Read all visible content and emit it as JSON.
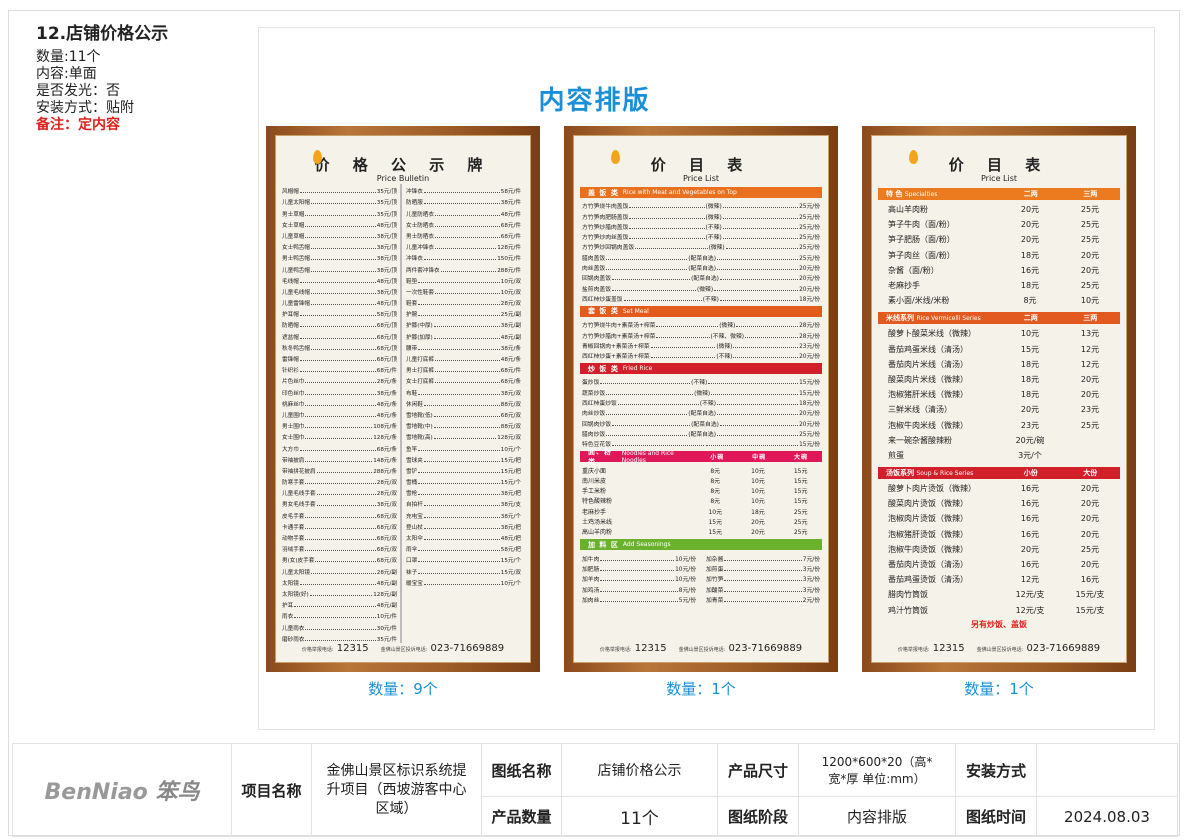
{
  "info": {
    "title": "12.店铺价格公示",
    "qty": "数量:11个",
    "content": "内容:单面",
    "glow": "是否发光：否",
    "install": "安装方式：贴附",
    "note": "备注：定内容"
  },
  "main_title": "内容排版",
  "colors": {
    "accent": "#1a8fd8",
    "note": "#e0201a",
    "rice_top": "#e8701e",
    "set_meal": "#e25a1c",
    "fried_rice": "#d21f2a",
    "noodles": "#e0185a",
    "seasonings": "#6ab22e",
    "specialties": "#ec7a1f",
    "vermicelli": "#e35a20",
    "soup": "#d2202a"
  },
  "footer_phones": {
    "report_label": "价格举报电话:",
    "report": "12315",
    "complaint_label": "金佛山景区投诉电话:",
    "complaint": "023-71669889"
  },
  "board1": {
    "title": "价 格 公 示 牌",
    "subtitle": "Price Bulletin",
    "caption": "数量：9个",
    "left": [
      [
        "风帽帽",
        "35元/顶"
      ],
      [
        "儿童太阳帽",
        "35元/顶"
      ],
      [
        "男士草帽",
        "35元/顶"
      ],
      [
        "女士草帽",
        "48元/顶"
      ],
      [
        "儿童草帽",
        "38元/顶"
      ],
      [
        "女士鸭舌帽",
        "38元/顶"
      ],
      [
        "男士鸭舌帽",
        "38元/顶"
      ],
      [
        "儿童鸭舌帽",
        "38元/顶"
      ],
      [
        "毛线帽",
        "48元/顶"
      ],
      [
        "儿童毛线帽",
        "38元/顶"
      ],
      [
        "儿童雷锋帽",
        "48元/顶"
      ],
      [
        "护耳帽",
        "58元/顶"
      ],
      [
        "防晒帽",
        "68元/顶"
      ],
      [
        "遮盆帽",
        "68元/顶"
      ],
      [
        "秋冬鸭舌帽",
        "68元/顶"
      ],
      [
        "雷锋帽",
        "68元/顶"
      ],
      [
        "针织衫",
        "68元/件"
      ],
      [
        "片色丝巾",
        "28元/条"
      ],
      [
        "印色丝巾",
        "38元/条"
      ],
      [
        "桃麻丝巾",
        "48元/条"
      ],
      [
        "儿童围巾",
        "48元/条"
      ],
      [
        "男士围巾",
        "108元/条"
      ],
      [
        "女士围巾",
        "128元/条"
      ],
      [
        "大方巾",
        "68元/条"
      ],
      [
        "带袖披肩",
        "148元/条"
      ],
      [
        "带袖拼花披肩",
        "288元/条"
      ],
      [
        "防寒手套",
        "28元/双"
      ],
      [
        "儿童毛线手套",
        "28元/双"
      ],
      [
        "男女毛线手套",
        "38元/双"
      ],
      [
        "皮毛手套",
        "68元/双"
      ],
      [
        "卡通手套",
        "68元/双"
      ],
      [
        "动物手套",
        "68元/双"
      ],
      [
        "羽绒手套",
        "68元/双"
      ],
      [
        "男(女)皮手套",
        "68元/双"
      ],
      [
        "儿童太阳镜",
        "28元/副"
      ],
      [
        "太阳镜",
        "48元/副"
      ],
      [
        "太阳镜(好)",
        "128元/副"
      ],
      [
        "护耳",
        "48元/副"
      ],
      [
        "雨衣",
        "10元/件"
      ],
      [
        "儿童雨衣",
        "30元/件"
      ],
      [
        "磨砂雨衣",
        "35元/件"
      ]
    ],
    "right": [
      [
        "冲锋衣",
        "58元/件"
      ],
      [
        "防晒服",
        "38元/件"
      ],
      [
        "儿童防晒衣",
        "48元/件"
      ],
      [
        "女士防晒衣",
        "68元/件"
      ],
      [
        "男士防晒衣",
        "68元/件"
      ],
      [
        "儿童冲锋衣",
        "128元/件"
      ],
      [
        "冲锋衣",
        "150元/件"
      ],
      [
        "两件套冲锋衣",
        "288元/件"
      ],
      [
        "鞋垫",
        "10元/双"
      ],
      [
        "一次性鞋套",
        "10元/双"
      ],
      [
        "鞋套",
        "28元/双"
      ],
      [
        "护腕",
        "25元/副"
      ],
      [
        "护膝(中厚)",
        "38元/副"
      ],
      [
        "护膝(加厚)",
        "48元/副"
      ],
      [
        "腰带",
        "38元/条"
      ],
      [
        "儿童打底裤",
        "48元/条"
      ],
      [
        "男士打底裤",
        "68元/件"
      ],
      [
        "女士打底裤",
        "68元/条"
      ],
      [
        "布鞋",
        "38元/双"
      ],
      [
        "休闲鞋",
        "88元/双"
      ],
      [
        "雪地靴(低)",
        "68元/双"
      ],
      [
        "雪地靴(中)",
        "88元/双"
      ],
      [
        "雪地靴(高)",
        "128元/双"
      ],
      [
        "鱼竿",
        "10元/个"
      ],
      [
        "雪球夹",
        "15元/把"
      ],
      [
        "雪铲",
        "15元/把"
      ],
      [
        "雪桶",
        "15元/个"
      ],
      [
        "雪枪",
        "38元/把"
      ],
      [
        "自拍杆",
        "38元/支"
      ],
      [
        "充电宝",
        "38元/个"
      ],
      [
        "登山杖",
        "38元/把"
      ],
      [
        "太阳伞",
        "48元/把"
      ],
      [
        "雨伞",
        "58元/把"
      ],
      [
        "口罩",
        "15元/个"
      ],
      [
        "袜子",
        "15元/双"
      ],
      [
        "暖宝宝",
        "10元/个"
      ]
    ]
  },
  "board2": {
    "title": "价 目 表",
    "subtitle": "Price List",
    "caption": "数量：1个",
    "rice_top": {
      "title": "盖 饭 类",
      "en": "Rice with Meat and Vegetables on Top",
      "items": [
        [
          "方竹笋烧牛肉盖饭",
          "(微辣)",
          "25元/份"
        ],
        [
          "方竹笋肉肥肠盖饭",
          "(微辣)",
          "25元/份"
        ],
        [
          "方竹笋炒腊肉盖饭",
          "(不辣)",
          "25元/份"
        ],
        [
          "方竹笋炒肉丝盖饭",
          "(不辣)",
          "25元/份"
        ],
        [
          "方竹笋炒回锅肉盖饭",
          "(微辣)",
          "25元/份"
        ],
        [
          "腊肉盖饭",
          "(配菜自选)",
          "25元/份"
        ],
        [
          "肉丝盖饭",
          "(配菜自选)",
          "20元/份"
        ],
        [
          "回锅肉盖饭",
          "(配菜自选)",
          "20元/份"
        ],
        [
          "盐煎肉盖饭",
          "(微辣)",
          "20元/份"
        ],
        [
          "西红柿炒蛋盖饭",
          "(不辣)",
          "18元/份"
        ]
      ]
    },
    "set_meal": {
      "title": "套 饭 类",
      "en": "Set Meal",
      "items": [
        [
          "方竹笋烧牛肉+素菜汤+榨菜",
          "(微辣)",
          "28元/份"
        ],
        [
          "方竹笋炒腊肉+素菜汤+榨菜",
          "(不辣、微辣)",
          "28元/份"
        ],
        [
          "青椒回锅肉+素菜汤+榨菜",
          "(微辣)",
          "23元/份"
        ],
        [
          "西红柿炒蛋+素菜汤+榨菜",
          "(不辣)",
          "20元/份"
        ]
      ]
    },
    "fried_rice": {
      "title": "炒 饭 类",
      "en": "Fried Rice",
      "items": [
        [
          "蛋炒饭",
          "(不辣)",
          "15元/份"
        ],
        [
          "蔬菜炒饭",
          "(微辣)",
          "15元/份"
        ],
        [
          "西红柿蛋炒饭",
          "(不辣)",
          "18元/份"
        ],
        [
          "肉丝炒饭",
          "(配菜自选)",
          "20元/份"
        ],
        [
          "回锅肉炒饭",
          "(配菜自选)",
          "20元/份"
        ],
        [
          "腊肉炒饭",
          "(配菜自选)",
          "25元/份"
        ],
        [
          "特色豆花饭",
          "",
          "15元/份"
        ]
      ]
    },
    "noodles": {
      "title": "面、粉类",
      "en": "Noodles and Rice Noodles",
      "sizes": [
        "小碗",
        "中碗",
        "大碗"
      ],
      "items": [
        [
          "重庆小面",
          "8元",
          "10元",
          "15元"
        ],
        [
          "南川米皮",
          "8元",
          "10元",
          "15元"
        ],
        [
          "手工米粉",
          "8元",
          "10元",
          "15元"
        ],
        [
          "特色酸辣粉",
          "8元",
          "10元",
          "15元"
        ],
        [
          "老麻抄手",
          "10元",
          "18元",
          "25元"
        ],
        [
          "土鸡汤米线",
          "15元",
          "20元",
          "25元"
        ],
        [
          "高山羊肉粉",
          "15元",
          "20元",
          "25元"
        ]
      ]
    },
    "seasonings": {
      "title": "加 料 区",
      "en": "Add Seasonings",
      "left": [
        [
          "加牛肉",
          "10元/份"
        ],
        [
          "加肥肠",
          "10元/份"
        ],
        [
          "加羊肉",
          "10元/份"
        ],
        [
          "加鸡汤",
          "8元/份"
        ],
        [
          "加肉丝",
          "5元/份"
        ]
      ],
      "right": [
        [
          "加杂酱",
          "7元/份"
        ],
        [
          "加煎蛋",
          "3元/份"
        ],
        [
          "加竹笋",
          "3元/份"
        ],
        [
          "加酸菜",
          "3元/份"
        ],
        [
          "加青菜",
          "2元/份"
        ]
      ]
    }
  },
  "board3": {
    "title": "价 目 表",
    "subtitle": "Price List",
    "caption": "数量：1个",
    "specialties": {
      "title": "特 色",
      "en": "Specialties",
      "cols": [
        "二两",
        "三两"
      ],
      "items": [
        [
          "高山羊肉粉",
          "20元",
          "25元"
        ],
        [
          "笋子牛肉（面/粉）",
          "20元",
          "25元"
        ],
        [
          "笋子肥肠（面/粉）",
          "20元",
          "25元"
        ],
        [
          "笋子肉丝（面/粉）",
          "18元",
          "20元"
        ],
        [
          "杂酱（面/粉）",
          "16元",
          "20元"
        ],
        [
          "老麻抄手",
          "18元",
          "25元"
        ],
        [
          "素小面/米线/米粉",
          "8元",
          "10元"
        ]
      ]
    },
    "vermicelli": {
      "title": "米线系列",
      "en": "Rice Vermicelli Series",
      "cols": [
        "二两",
        "三两"
      ],
      "items": [
        [
          "酸萝卜酸菜米线（微辣）",
          "10元",
          "13元"
        ],
        [
          "番茄鸡蛋米线（清汤）",
          "15元",
          "12元"
        ],
        [
          "番茄肉片米线（清汤）",
          "18元",
          "12元"
        ],
        [
          "酸菜肉片米线（微辣）",
          "18元",
          "20元"
        ],
        [
          "泡椒猪肝米线（微辣）",
          "18元",
          "20元"
        ],
        [
          "三鲜米线（清汤）",
          "20元",
          "23元"
        ],
        [
          "泡椒牛肉米线（微辣）",
          "23元",
          "25元"
        ],
        [
          "来一碗杂酱酸辣粉",
          "20元/碗",
          ""
        ],
        [
          "煎蛋",
          "3元/个",
          ""
        ]
      ]
    },
    "soup": {
      "title": "汤饭系列",
      "en": "Soup & Rice Series",
      "cols": [
        "小份",
        "大份"
      ],
      "items": [
        [
          "酸萝卜肉片烫饭（微辣）",
          "16元",
          "20元"
        ],
        [
          "酸菜肉片烫饭（微辣）",
          "16元",
          "20元"
        ],
        [
          "泡椒肉片烫饭（微辣）",
          "16元",
          "20元"
        ],
        [
          "泡椒猪肝烫饭（微辣）",
          "16元",
          "20元"
        ],
        [
          "泡椒牛肉烫饭（微辣）",
          "20元",
          "25元"
        ],
        [
          "番茄肉片烫饭（清汤）",
          "16元",
          "20元"
        ],
        [
          "番茄鸡蛋烫饭（清汤）",
          "12元",
          "16元"
        ],
        [
          "腊肉竹筒饭",
          "12元/支",
          "15元/支"
        ],
        [
          "鸡汁竹筒饭",
          "12元/支",
          "15元/支"
        ]
      ]
    },
    "extra": "另有炒饭、盖饭"
  },
  "titleblock": {
    "logo": "BenNiao 笨鸟",
    "project_label": "项目名称",
    "project": "金佛山景区标识系统提升项目（西坡游客中心区域）",
    "drawing_name_label": "图纸名称",
    "drawing_name": "店铺价格公示",
    "size_label": "产品尺寸",
    "size": "1200*600*20（高*宽*厚 单位:mm）",
    "install_label": "安装方式",
    "install": "",
    "qty_label": "产品数量",
    "qty": "11个",
    "stage_label": "图纸阶段",
    "stage": "内容排版",
    "date_label": "图纸时间",
    "date": "2024.08.03"
  }
}
